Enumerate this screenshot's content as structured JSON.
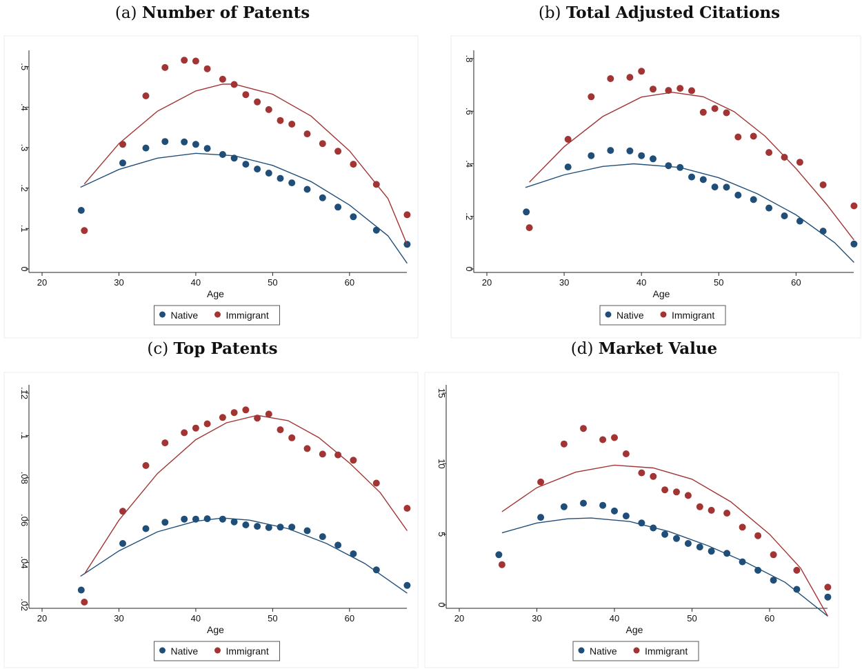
{
  "colors": {
    "native": "#1f4e79",
    "immigrant": "#a23434",
    "frame": "#e8eef3",
    "axis": "#222222"
  },
  "chart_data": [
    {
      "type": "scatter",
      "panel_prefix": "(a)",
      "title": "Number of Patents",
      "xlabel": "Age",
      "ylabel": "",
      "xlim": [
        20,
        68
      ],
      "ylim": [
        0,
        0.52
      ],
      "xticks": [
        20,
        30,
        40,
        50,
        60
      ],
      "yticks": [
        0,
        0.1,
        0.2,
        0.3,
        0.4,
        0.5
      ],
      "yticklabels": [
        "0",
        ".1",
        ".2",
        ".3",
        ".4",
        ".5"
      ],
      "legend": [
        "Native",
        "Immigrant"
      ],
      "legend_position": "bottom",
      "series": [
        {
          "name": "Native",
          "x": [
            25.1,
            30.5,
            33.5,
            36,
            38.5,
            40,
            41.5,
            43.5,
            45,
            46.5,
            48,
            49.5,
            51,
            52.5,
            54.5,
            56.5,
            58.5,
            60.5,
            63.5,
            67.5
          ],
          "y": [
            0.145,
            0.262,
            0.299,
            0.315,
            0.314,
            0.308,
            0.298,
            0.283,
            0.274,
            0.259,
            0.247,
            0.237,
            0.224,
            0.213,
            0.197,
            0.176,
            0.153,
            0.129,
            0.096,
            0.061
          ],
          "fit": [
            [
              25,
              0.202
            ],
            [
              30,
              0.246
            ],
            [
              35,
              0.274
            ],
            [
              40,
              0.286
            ],
            [
              45,
              0.28
            ],
            [
              50,
              0.256
            ],
            [
              55,
              0.216
            ],
            [
              60,
              0.158
            ],
            [
              65,
              0.082
            ],
            [
              67.5,
              0.014
            ]
          ]
        },
        {
          "name": "Immigrant",
          "x": [
            25.5,
            30.5,
            33.5,
            36,
            38.5,
            40,
            41.5,
            43.5,
            45,
            46.5,
            48,
            49.5,
            51,
            52.5,
            54.5,
            56.5,
            58.5,
            60.5,
            63.5,
            67.5
          ],
          "y": [
            0.095,
            0.308,
            0.428,
            0.498,
            0.516,
            0.514,
            0.495,
            0.469,
            0.456,
            0.431,
            0.413,
            0.394,
            0.367,
            0.358,
            0.334,
            0.31,
            0.291,
            0.259,
            0.209,
            0.134
          ],
          "fit": [
            [
              25.5,
              0.21
            ],
            [
              30,
              0.31
            ],
            [
              35,
              0.39
            ],
            [
              40,
              0.44
            ],
            [
              43.5,
              0.457
            ],
            [
              45,
              0.457
            ],
            [
              50,
              0.432
            ],
            [
              55,
              0.378
            ],
            [
              60,
              0.292
            ],
            [
              65,
              0.174
            ],
            [
              67.5,
              0.06
            ]
          ]
        }
      ]
    },
    {
      "type": "scatter",
      "panel_prefix": "(b)",
      "title": "Total Adjusted Citations",
      "xlabel": "Age",
      "ylabel": "",
      "xlim": [
        20,
        68
      ],
      "ylim": [
        0,
        0.8
      ],
      "xticks": [
        20,
        30,
        40,
        50,
        60
      ],
      "yticks": [
        0,
        0.2,
        0.4,
        0.6,
        0.8
      ],
      "yticklabels": [
        "0",
        ".2",
        ".4",
        ".6",
        ".8"
      ],
      "legend": [
        "Native",
        "Immigrant"
      ],
      "legend_position": "bottom",
      "series": [
        {
          "name": "Native",
          "x": [
            25.1,
            30.5,
            33.5,
            36,
            38.5,
            40,
            41.5,
            43.5,
            45,
            46.5,
            48,
            49.5,
            51,
            52.5,
            54.5,
            56.5,
            58.5,
            60.5,
            63.5,
            67.5
          ],
          "y": [
            0.217,
            0.388,
            0.431,
            0.451,
            0.449,
            0.431,
            0.419,
            0.393,
            0.386,
            0.35,
            0.34,
            0.312,
            0.311,
            0.281,
            0.264,
            0.232,
            0.202,
            0.182,
            0.144,
            0.095
          ],
          "fit": [
            [
              25,
              0.31
            ],
            [
              30,
              0.358
            ],
            [
              35,
              0.39
            ],
            [
              39,
              0.4
            ],
            [
              45,
              0.386
            ],
            [
              50,
              0.347
            ],
            [
              55,
              0.286
            ],
            [
              60,
              0.206
            ],
            [
              65,
              0.1
            ],
            [
              67.5,
              0.025
            ]
          ]
        },
        {
          "name": "Immigrant",
          "x": [
            25.5,
            30.5,
            33.5,
            36,
            38.5,
            40,
            41.5,
            43.5,
            45,
            46.5,
            48,
            49.5,
            51,
            52.5,
            54.5,
            56.5,
            58.5,
            60.5,
            63.5,
            67.5
          ],
          "y": [
            0.157,
            0.493,
            0.655,
            0.724,
            0.729,
            0.752,
            0.684,
            0.679,
            0.687,
            0.678,
            0.596,
            0.61,
            0.594,
            0.502,
            0.505,
            0.443,
            0.425,
            0.406,
            0.32,
            0.24
          ],
          "fit": [
            [
              25.5,
              0.33
            ],
            [
              30,
              0.465
            ],
            [
              35,
              0.58
            ],
            [
              40,
              0.654
            ],
            [
              44,
              0.672
            ],
            [
              48,
              0.655
            ],
            [
              52,
              0.598
            ],
            [
              56,
              0.505
            ],
            [
              60,
              0.382
            ],
            [
              64,
              0.244
            ],
            [
              67.5,
              0.11
            ]
          ]
        }
      ]
    },
    {
      "type": "scatter",
      "panel_prefix": "(c)",
      "title": "Top Patents",
      "xlabel": "Age",
      "ylabel": "",
      "xlim": [
        20,
        68
      ],
      "ylim": [
        0.02,
        0.12
      ],
      "xticks": [
        20,
        30,
        40,
        50,
        60
      ],
      "yticks": [
        0.02,
        0.04,
        0.06,
        0.08,
        0.1,
        0.12
      ],
      "yticklabels": [
        ".02",
        ".04",
        ".06",
        ".08",
        ".1",
        ".12"
      ],
      "legend": [
        "Native",
        "Immigrant"
      ],
      "legend_position": "bottom",
      "series": [
        {
          "name": "Native",
          "x": [
            25.1,
            30.5,
            33.5,
            36,
            38.5,
            40,
            41.5,
            43.5,
            45,
            46.5,
            48,
            49.5,
            51,
            52.5,
            54.5,
            56.5,
            58.5,
            60.5,
            63.5,
            67.5
          ],
          "y": [
            0.027,
            0.049,
            0.056,
            0.059,
            0.0605,
            0.0605,
            0.0607,
            0.0605,
            0.0592,
            0.0578,
            0.0571,
            0.0565,
            0.0567,
            0.0567,
            0.055,
            0.0522,
            0.0482,
            0.0441,
            0.0365,
            0.0292
          ],
          "fit": [
            [
              25,
              0.0335
            ],
            [
              30,
              0.0455
            ],
            [
              35,
              0.0545
            ],
            [
              40,
              0.0595
            ],
            [
              43.5,
              0.061
            ],
            [
              47,
              0.06
            ],
            [
              52,
              0.056
            ],
            [
              57,
              0.049
            ],
            [
              62,
              0.0395
            ],
            [
              67.5,
              0.0255
            ]
          ]
        },
        {
          "name": "Immigrant",
          "x": [
            25.5,
            30.5,
            33.5,
            36,
            38.5,
            40,
            41.5,
            43.5,
            45,
            46.5,
            48,
            49.5,
            51,
            52.5,
            54.5,
            56.5,
            58.5,
            60.5,
            63.5,
            67.5
          ],
          "y": [
            0.0213,
            0.0642,
            0.0858,
            0.0965,
            0.1013,
            0.1035,
            0.1055,
            0.1085,
            0.1108,
            0.1121,
            0.1082,
            0.1101,
            0.1027,
            0.0989,
            0.0938,
            0.0912,
            0.0908,
            0.0883,
            0.0775,
            0.0656
          ],
          "fit": [
            [
              25.5,
              0.0345
            ],
            [
              30,
              0.06
            ],
            [
              35,
              0.082
            ],
            [
              40,
              0.098
            ],
            [
              44,
              0.106
            ],
            [
              48,
              0.1095
            ],
            [
              52,
              0.107
            ],
            [
              56,
              0.099
            ],
            [
              60,
              0.087
            ],
            [
              64,
              0.073
            ],
            [
              67.5,
              0.055
            ]
          ]
        }
      ]
    },
    {
      "type": "scatter",
      "panel_prefix": "(d)",
      "title": "Market Value",
      "xlabel": "Age",
      "ylabel": "",
      "xlim": [
        20,
        68
      ],
      "ylim": [
        0,
        15
      ],
      "xticks": [
        20,
        30,
        40,
        50,
        60
      ],
      "yticks": [
        0,
        5,
        10,
        15
      ],
      "yticklabels": [
        "0",
        "5",
        "10",
        "15"
      ],
      "legend": [
        "Native",
        "Immigrant"
      ],
      "legend_position": "bottom",
      "series": [
        {
          "name": "Native",
          "x": [
            25.1,
            30.5,
            33.5,
            36,
            38.5,
            40,
            41.5,
            43.5,
            45,
            46.5,
            48,
            49.5,
            51,
            52.5,
            54.5,
            56.5,
            58.5,
            60.5,
            63.5,
            67.5
          ],
          "y": [
            3.55,
            6.2,
            6.95,
            7.2,
            7.05,
            6.65,
            6.3,
            5.8,
            5.45,
            5.0,
            4.7,
            4.35,
            4.1,
            3.8,
            3.65,
            3.05,
            2.45,
            1.75,
            1.1,
            0.55
          ],
          "fit": [
            [
              25.5,
              5.1
            ],
            [
              30,
              5.8
            ],
            [
              34,
              6.1
            ],
            [
              37,
              6.15
            ],
            [
              42,
              5.9
            ],
            [
              47,
              5.2
            ],
            [
              52,
              4.2
            ],
            [
              57,
              3.0
            ],
            [
              62,
              1.6
            ],
            [
              67.5,
              -0.8
            ]
          ]
        },
        {
          "name": "Immigrant",
          "x": [
            25.5,
            30.5,
            33.5,
            36,
            38.5,
            40,
            41.5,
            43.5,
            45,
            46.5,
            48,
            49.5,
            51,
            52.5,
            54.5,
            56.5,
            58.5,
            60.5,
            63.5,
            67.5
          ],
          "y": [
            2.85,
            8.7,
            11.4,
            12.5,
            11.7,
            11.85,
            10.7,
            9.35,
            9.1,
            8.15,
            8.0,
            7.75,
            6.95,
            6.7,
            6.5,
            5.5,
            4.9,
            3.55,
            2.45,
            1.25
          ],
          "fit": [
            [
              25.5,
              6.6
            ],
            [
              30,
              8.3
            ],
            [
              35,
              9.4
            ],
            [
              40,
              9.9
            ],
            [
              45,
              9.7
            ],
            [
              50,
              8.9
            ],
            [
              55,
              7.3
            ],
            [
              60,
              5.0
            ],
            [
              64,
              2.6
            ],
            [
              67.5,
              -0.8
            ]
          ]
        }
      ]
    }
  ]
}
